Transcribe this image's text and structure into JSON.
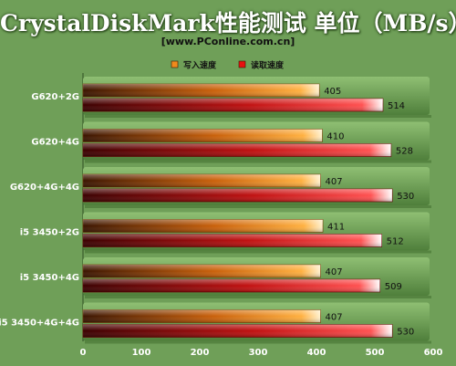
{
  "chart_data": {
    "type": "bar",
    "orientation": "horizontal",
    "title": "CrystalDiskMark性能测试 单位（MB/s）",
    "subtitle": "[www.PConline.com.cn]",
    "categories": [
      "G620+2G",
      "G620+4G",
      "G620+4G+4G",
      "i5 3450+2G",
      "i5 3450+4G",
      "i5 3450+4G+4G"
    ],
    "series": [
      {
        "name": "写入速度",
        "values": [
          405,
          410,
          407,
          411,
          407,
          407
        ],
        "color": "#f08a1c"
      },
      {
        "name": "读取速度",
        "values": [
          514,
          528,
          530,
          512,
          509,
          530
        ],
        "color": "#e81010"
      }
    ],
    "xlim": [
      0,
      600
    ],
    "xticks": [
      0,
      100,
      200,
      300,
      400,
      500,
      600
    ],
    "legend_position": "top-center",
    "grid": false
  }
}
